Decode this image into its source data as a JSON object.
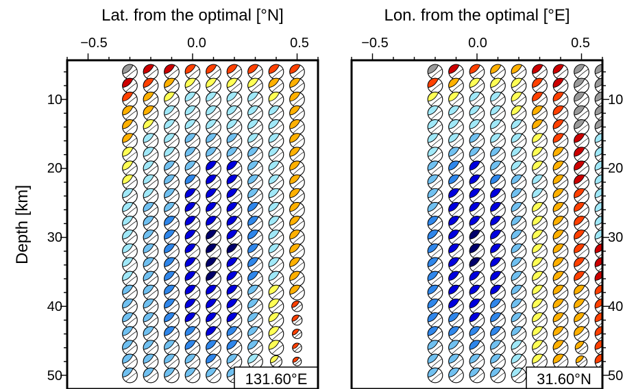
{
  "colors": {
    "gray": "#9a9a9a",
    "dark_red": "#cc0000",
    "red_orange": "#ff4000",
    "orange": "#ffb000",
    "yellow": "#ffff55",
    "light_cyan": "#a0e8f8",
    "light_blue": "#70c0f0",
    "mid_blue": "#2f86ea",
    "blue": "#0000dd",
    "navy": "#00006a"
  },
  "shared": {
    "ylabel": "Depth [km]",
    "depth_ticks": [
      "10",
      "20",
      "30",
      "40",
      "50"
    ]
  },
  "chart_data": [
    {
      "type": "scatter",
      "xlabel": "Lat. from the optimal [°N]",
      "x_ticks": [
        "−0.5",
        "0.0",
        "0.5"
      ],
      "xlim": [
        -0.6,
        0.6
      ],
      "ylim": [
        4,
        52
      ],
      "corner_label": "131.60°E",
      "x": [
        -0.3,
        -0.2,
        -0.1,
        0.0,
        0.1,
        0.2,
        0.3,
        0.4,
        0.5
      ],
      "depths": [
        6,
        8,
        10,
        12,
        14,
        16,
        18,
        20,
        22,
        24,
        26,
        28,
        30,
        32,
        34,
        36,
        38,
        40,
        42,
        44,
        46,
        48,
        50
      ],
      "columns": [
        {
          "x": -0.3,
          "colors": [
            "gray",
            "dark_red",
            "red_orange",
            "orange",
            "orange",
            "orange",
            "yellow",
            "yellow",
            "yellow",
            "light_cyan",
            "light_cyan",
            "light_cyan",
            "light_cyan",
            "light_cyan",
            "light_cyan",
            "light_cyan",
            "light_blue",
            "light_blue",
            "light_blue",
            "light_blue",
            "light_blue",
            "light_blue",
            "light_blue"
          ],
          "scale": []
        },
        {
          "x": -0.2,
          "colors": [
            "dark_red",
            "red_orange",
            "orange",
            "orange",
            "yellow",
            "light_cyan",
            "light_cyan",
            "light_cyan",
            "light_cyan",
            "light_cyan",
            "light_blue",
            "light_blue",
            "light_blue",
            "light_blue",
            "light_blue",
            "light_blue",
            "light_blue",
            "light_blue",
            "light_blue",
            "light_blue",
            "light_blue",
            "light_blue",
            "light_blue"
          ],
          "scale": []
        },
        {
          "x": -0.1,
          "colors": [
            "dark_red",
            "orange",
            "yellow",
            "light_cyan",
            "light_cyan",
            "light_cyan",
            "light_cyan",
            "light_blue",
            "light_blue",
            "light_blue",
            "light_blue",
            "mid_blue",
            "mid_blue",
            "mid_blue",
            "mid_blue",
            "mid_blue",
            "mid_blue",
            "mid_blue",
            "mid_blue",
            "mid_blue",
            "light_blue",
            "light_blue",
            "light_blue"
          ],
          "scale": []
        },
        {
          "x": 0.0,
          "colors": [
            "red_orange",
            "yellow",
            "light_cyan",
            "light_cyan",
            "light_cyan",
            "light_blue",
            "light_blue",
            "light_blue",
            "mid_blue",
            "blue",
            "blue",
            "blue",
            "blue",
            "blue",
            "blue",
            "blue",
            "blue",
            "blue",
            "blue",
            "mid_blue",
            "mid_blue",
            "light_blue",
            "light_blue"
          ],
          "scale": []
        },
        {
          "x": 0.1,
          "colors": [
            "red_orange",
            "yellow",
            "light_cyan",
            "light_cyan",
            "light_cyan",
            "light_blue",
            "light_blue",
            "blue",
            "blue",
            "blue",
            "blue",
            "blue",
            "navy",
            "navy",
            "navy",
            "navy",
            "blue",
            "blue",
            "blue",
            "blue",
            "mid_blue",
            "mid_blue",
            "light_blue"
          ],
          "scale": []
        },
        {
          "x": 0.2,
          "colors": [
            "red_orange",
            "yellow",
            "light_cyan",
            "light_cyan",
            "light_cyan",
            "light_blue",
            "light_blue",
            "blue",
            "blue",
            "blue",
            "blue",
            "blue",
            "blue",
            "navy",
            "blue",
            "blue",
            "blue",
            "blue",
            "blue",
            "mid_blue",
            "mid_blue",
            "light_blue",
            "light_blue"
          ],
          "scale": []
        },
        {
          "x": 0.3,
          "colors": [
            "red_orange",
            "yellow",
            "light_cyan",
            "light_cyan",
            "light_cyan",
            "light_cyan",
            "light_blue",
            "light_blue",
            "light_blue",
            "light_blue",
            "mid_blue",
            "mid_blue",
            "mid_blue",
            "mid_blue",
            "mid_blue",
            "mid_blue",
            "light_blue",
            "light_blue",
            "light_blue",
            "light_blue",
            "light_blue",
            "light_cyan",
            "light_cyan"
          ],
          "scale": []
        },
        {
          "x": 0.4,
          "colors": [
            "red_orange",
            "orange",
            "yellow",
            "light_cyan",
            "light_cyan",
            "light_cyan",
            "light_cyan",
            "light_cyan",
            "light_cyan",
            "light_cyan",
            "light_cyan",
            "light_cyan",
            "light_cyan",
            "light_cyan",
            "light_cyan",
            "light_cyan",
            "yellow",
            "yellow",
            "yellow",
            "yellow",
            "yellow",
            "yellow",
            "light_cyan"
          ],
          "scale": [
            1,
            1,
            1,
            1,
            1,
            1,
            1,
            1,
            1,
            1,
            1,
            1,
            1,
            1,
            1,
            1,
            1,
            1,
            1,
            1,
            1,
            0.78,
            1
          ]
        },
        {
          "x": 0.5,
          "colors": [
            "red_orange",
            "orange",
            "orange",
            "orange",
            "orange",
            "orange",
            "orange",
            "orange",
            "orange",
            "orange",
            "orange",
            "orange",
            "orange",
            "orange",
            "orange",
            "orange",
            "orange",
            "red_orange",
            "red_orange",
            "red_orange",
            "red_orange",
            "red_orange",
            "light_blue"
          ],
          "scale": [
            1,
            1,
            1,
            1,
            1,
            1,
            1,
            1,
            1,
            1,
            1,
            1,
            1,
            1,
            1,
            1,
            1,
            0.72,
            0.68,
            0.64,
            0.62,
            0.58,
            1
          ]
        }
      ]
    },
    {
      "type": "scatter",
      "xlabel": "Lon. from the optimal [°E]",
      "x_ticks": [
        "−0.5",
        "0.0",
        "0.5"
      ],
      "xlim": [
        -0.6,
        0.6
      ],
      "ylim": [
        4,
        52
      ],
      "corner_label": "31.60°N",
      "x": [
        -0.2,
        -0.1,
        0.0,
        0.1,
        0.2,
        0.3,
        0.4,
        0.5,
        0.6
      ],
      "depths": [
        6,
        8,
        10,
        12,
        14,
        16,
        18,
        20,
        22,
        24,
        26,
        28,
        30,
        32,
        34,
        36,
        38,
        40,
        42,
        44,
        46,
        48,
        50
      ],
      "columns": [
        {
          "x": -0.2,
          "colors": [
            "gray",
            "red_orange",
            "yellow",
            "light_cyan",
            "light_cyan",
            "light_cyan",
            "light_cyan",
            "light_blue",
            "light_blue",
            "light_blue",
            "light_blue",
            "mid_blue",
            "mid_blue",
            "mid_blue",
            "mid_blue",
            "mid_blue",
            "mid_blue",
            "mid_blue",
            "mid_blue",
            "mid_blue",
            "light_blue",
            "light_blue",
            "light_blue"
          ],
          "scale": []
        },
        {
          "x": -0.1,
          "colors": [
            "dark_red",
            "orange",
            "yellow",
            "light_cyan",
            "light_cyan",
            "light_cyan",
            "light_blue",
            "mid_blue",
            "mid_blue",
            "blue",
            "blue",
            "blue",
            "blue",
            "blue",
            "blue",
            "blue",
            "blue",
            "blue",
            "mid_blue",
            "mid_blue",
            "light_blue",
            "light_blue",
            "light_blue"
          ],
          "scale": []
        },
        {
          "x": 0.0,
          "colors": [
            "red_orange",
            "yellow",
            "light_cyan",
            "light_cyan",
            "light_cyan",
            "light_blue",
            "light_blue",
            "blue",
            "blue",
            "blue",
            "blue",
            "blue",
            "navy",
            "navy",
            "navy",
            "blue",
            "blue",
            "blue",
            "blue",
            "mid_blue",
            "mid_blue",
            "light_blue",
            "light_blue"
          ],
          "scale": []
        },
        {
          "x": 0.1,
          "colors": [
            "orange",
            "yellow",
            "light_cyan",
            "light_cyan",
            "light_cyan",
            "light_cyan",
            "light_blue",
            "light_blue",
            "mid_blue",
            "blue",
            "blue",
            "blue",
            "blue",
            "blue",
            "blue",
            "blue",
            "blue",
            "mid_blue",
            "mid_blue",
            "mid_blue",
            "light_blue",
            "light_blue",
            "light_blue"
          ],
          "scale": []
        },
        {
          "x": 0.2,
          "colors": [
            "orange",
            "yellow",
            "yellow",
            "yellow",
            "light_cyan",
            "light_cyan",
            "light_cyan",
            "light_cyan",
            "light_blue",
            "light_blue",
            "light_blue",
            "light_blue",
            "light_blue",
            "light_blue",
            "light_blue",
            "light_blue",
            "light_blue",
            "light_blue",
            "light_blue",
            "light_blue",
            "light_cyan",
            "light_cyan",
            "light_cyan"
          ],
          "scale": []
        },
        {
          "x": 0.3,
          "colors": [
            "dark_red",
            "red_orange",
            "red_orange",
            "orange",
            "orange",
            "yellow",
            "yellow",
            "yellow",
            "light_cyan",
            "light_cyan",
            "yellow",
            "yellow",
            "yellow",
            "yellow",
            "yellow",
            "yellow",
            "yellow",
            "yellow",
            "yellow",
            "yellow",
            "yellow",
            "yellow",
            "yellow"
          ],
          "scale": []
        },
        {
          "x": 0.4,
          "colors": [
            "dark_red",
            "dark_red",
            "red_orange",
            "red_orange",
            "red_orange",
            "red_orange",
            "orange",
            "orange",
            "orange",
            "orange",
            "orange",
            "orange",
            "orange",
            "orange",
            "orange",
            "orange",
            "orange",
            "orange",
            "orange",
            "orange",
            "orange",
            "orange",
            "orange"
          ],
          "scale": []
        },
        {
          "x": 0.5,
          "colors": [
            "gray",
            "gray",
            "gray",
            "gray",
            "gray",
            "dark_red",
            "dark_red",
            "dark_red",
            "dark_red",
            "red_orange",
            "red_orange",
            "red_orange",
            "red_orange",
            "red_orange",
            "red_orange",
            "red_orange",
            "orange",
            "orange",
            "orange",
            "orange",
            "orange",
            "orange",
            "orange"
          ],
          "scale": [
            1,
            1,
            1,
            1,
            1,
            1,
            1,
            1,
            1,
            1,
            1,
            1,
            1,
            1,
            1,
            1,
            1,
            1,
            1,
            1,
            0.85,
            0.75,
            0.7
          ]
        },
        {
          "x": 0.6,
          "colors": [
            "gray",
            "gray",
            "gray",
            "gray",
            "gray",
            "light_cyan",
            "light_cyan",
            "light_cyan",
            "light_cyan",
            "light_cyan",
            "light_cyan",
            "light_cyan",
            "light_cyan",
            "dark_red",
            "dark_red",
            "dark_red",
            "red_orange",
            "red_orange",
            "red_orange",
            "red_orange",
            "red_orange",
            "red_orange",
            "red_orange"
          ],
          "scale": []
        }
      ]
    }
  ]
}
